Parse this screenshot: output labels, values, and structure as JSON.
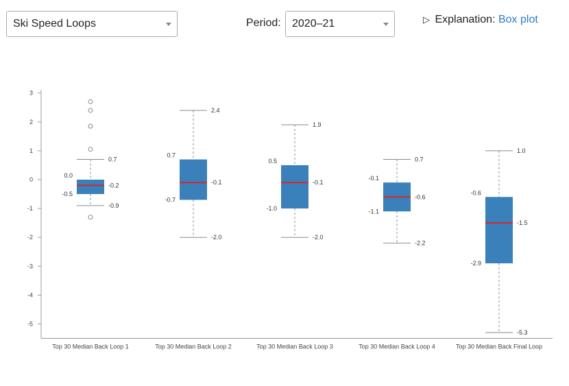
{
  "controls": {
    "metric_value": "Ski Speed Loops",
    "period_label": "Period:",
    "period_value": "2020–21",
    "explanation_label": "Explanation:",
    "explanation_link": "Box plot"
  },
  "colors": {
    "box": "#3a80ba",
    "median": "#d62728",
    "whisker": "#888888",
    "outlier": "#888888"
  },
  "chart_data": {
    "type": "box",
    "title": "",
    "xlabel": "",
    "ylabel": "",
    "ylim": [
      -5.5,
      3.1
    ],
    "yticks": [
      3,
      2,
      1,
      0,
      -1,
      -2,
      -3,
      -4,
      -5
    ],
    "categories": [
      "Top 30 Median Back Loop 1",
      "Top 30 Median Back Loop 2",
      "Top 30 Median Back Loop 3",
      "Top 30 Median Back Loop 4",
      "Top 30 Median Back Final Loop"
    ],
    "boxes": [
      {
        "whisker_high": 0.7,
        "q3": 0.0,
        "median": -0.2,
        "q1": -0.5,
        "whisker_low": -0.9,
        "labels": {
          "whisker_high": "0.7",
          "q3": "0.0",
          "median": "-0.2",
          "q1": "-0.5",
          "whisker_low": "-0.9"
        },
        "outliers": [
          2.7,
          2.4,
          1.85,
          1.05,
          -1.3
        ]
      },
      {
        "whisker_high": 2.4,
        "q3": 0.7,
        "median": -0.1,
        "q1": -0.7,
        "whisker_low": -2.0,
        "labels": {
          "whisker_high": "2.4",
          "q3": "0.7",
          "median": "-0.1",
          "q1": "-0.7",
          "whisker_low": "-2.0"
        },
        "outliers": []
      },
      {
        "whisker_high": 1.9,
        "q3": 0.5,
        "median": -0.1,
        "q1": -1.0,
        "whisker_low": -2.0,
        "labels": {
          "whisker_high": "1.9",
          "q3": "0.5",
          "median": "-0.1",
          "q1": "-1.0",
          "whisker_low": "-2.0"
        },
        "outliers": []
      },
      {
        "whisker_high": 0.7,
        "q3": -0.1,
        "median": -0.6,
        "q1": -1.1,
        "whisker_low": -2.2,
        "labels": {
          "whisker_high": "0.7",
          "q3": "-0.1",
          "median": "-0.6",
          "q1": "-1.1",
          "whisker_low": "-2.2"
        },
        "outliers": []
      },
      {
        "whisker_high": 1.0,
        "q3": -0.6,
        "median": -1.5,
        "q1": -2.9,
        "whisker_low": -5.3,
        "labels": {
          "whisker_high": "1.0",
          "q3": "-0.6",
          "median": "-1.5",
          "q1": "-2.9",
          "whisker_low": "-5.3"
        },
        "outliers": []
      }
    ]
  }
}
